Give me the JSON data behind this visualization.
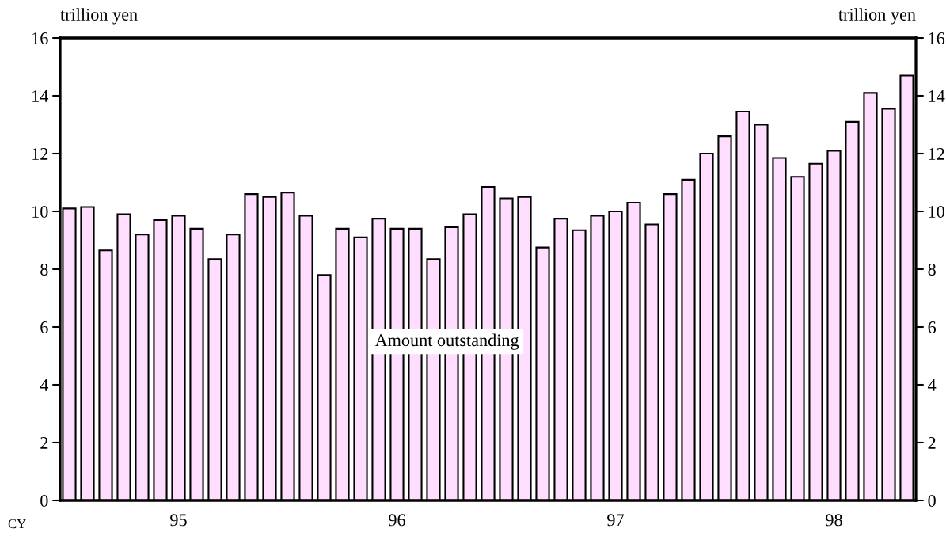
{
  "chart_data": {
    "type": "bar",
    "ylabel": "trillion yen",
    "y2label": "trillion yen",
    "categories": [
      null,
      null,
      null,
      null,
      null,
      null,
      "95",
      null,
      null,
      null,
      null,
      null,
      null,
      null,
      null,
      null,
      null,
      null,
      "96",
      null,
      null,
      null,
      null,
      null,
      null,
      null,
      null,
      null,
      null,
      null,
      "97",
      null,
      null,
      null,
      null,
      null,
      null,
      null,
      null,
      null,
      null,
      null,
      "98",
      null,
      null,
      null,
      null
    ],
    "values": [
      10.1,
      10.15,
      8.65,
      9.9,
      9.2,
      9.7,
      9.85,
      9.4,
      8.35,
      9.2,
      10.6,
      10.5,
      10.65,
      9.85,
      7.8,
      9.4,
      9.1,
      9.75,
      9.4,
      9.4,
      8.35,
      9.45,
      9.9,
      10.85,
      10.45,
      10.5,
      8.75,
      9.75,
      9.35,
      9.85,
      10.0,
      10.3,
      9.55,
      10.6,
      11.1,
      12.0,
      12.6,
      13.45,
      13.0,
      11.85,
      11.2,
      11.65,
      12.1,
      13.1,
      14.1,
      13.55,
      14.7
    ],
    "color": "#ffddff",
    "ylim": [
      0,
      16
    ],
    "yticks": [
      0,
      2,
      4,
      6,
      8,
      10,
      12,
      14,
      16
    ],
    "y2lim": [
      0,
      16
    ],
    "y2ticks": [
      0,
      2,
      4,
      6,
      8,
      10,
      12,
      14,
      16
    ],
    "grid": false,
    "legend": false,
    "annotations": [
      "Amount outstanding",
      "CY"
    ]
  }
}
